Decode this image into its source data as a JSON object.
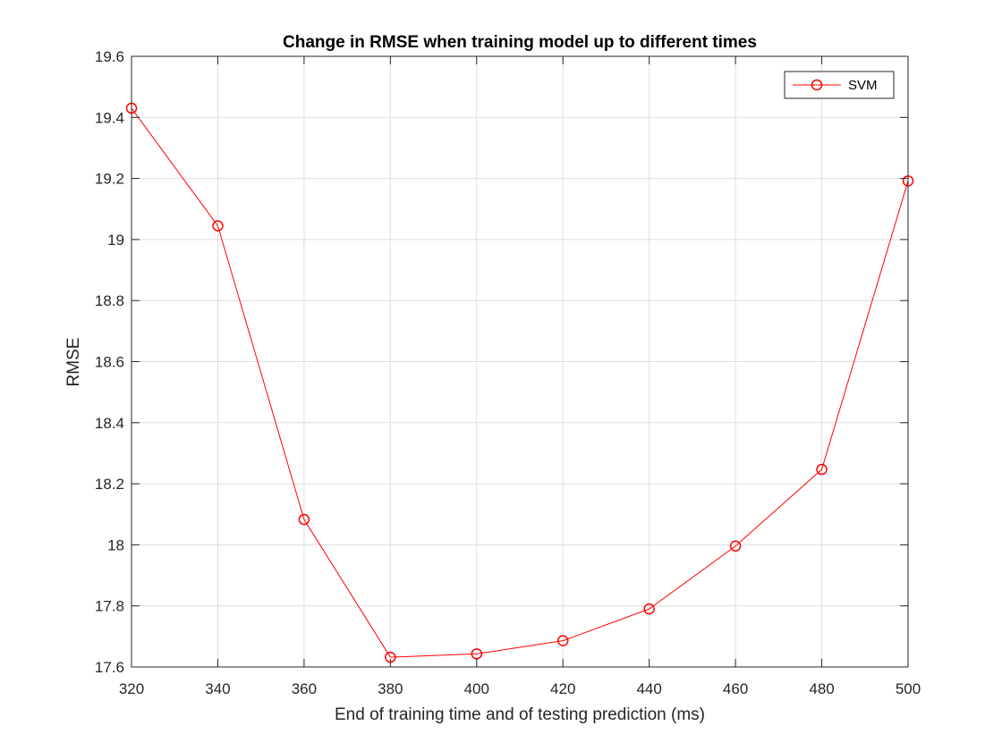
{
  "chart_data": {
    "type": "line",
    "title": "Change in RMSE when training model up to different times",
    "xlabel": "End of training time and of testing prediction (ms)",
    "ylabel": "RMSE",
    "xlim": [
      320,
      500
    ],
    "ylim": [
      17.6,
      19.6
    ],
    "xticks": [
      320,
      340,
      360,
      380,
      400,
      420,
      440,
      460,
      480,
      500
    ],
    "yticks": [
      17.6,
      17.8,
      18,
      18.2,
      18.4,
      18.6,
      18.8,
      19,
      19.2,
      19.4,
      19.6
    ],
    "xtick_labels": [
      "320",
      "340",
      "360",
      "380",
      "400",
      "420",
      "440",
      "460",
      "480",
      "500"
    ],
    "ytick_labels": [
      "17.6",
      "17.8",
      "18",
      "18.2",
      "18.4",
      "18.6",
      "18.8",
      "19",
      "19.2",
      "19.4",
      "19.6"
    ],
    "grid": true,
    "legend_position": "top-right",
    "series": [
      {
        "name": "SVM",
        "color": "#ff0000",
        "marker": "circle",
        "x": [
          320,
          340,
          360,
          380,
          400,
          420,
          440,
          460,
          480,
          500
        ],
        "y": [
          19.43,
          19.045,
          18.083,
          17.632,
          17.643,
          17.686,
          17.79,
          17.996,
          18.247,
          19.192
        ]
      }
    ]
  }
}
